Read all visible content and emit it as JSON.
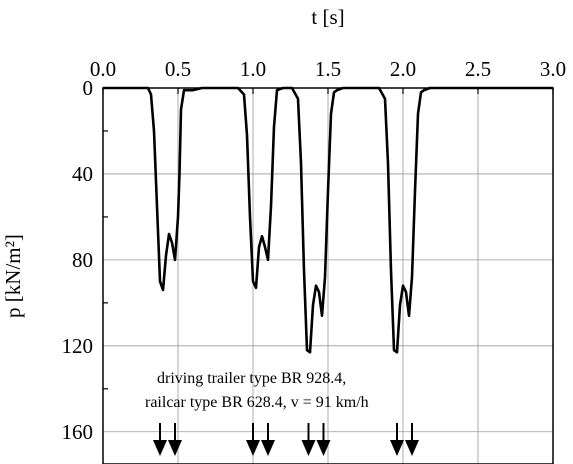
{
  "chart_data": {
    "type": "line",
    "xlabel": "t [s]",
    "ylabel": "p [kN/m²]",
    "xlim": [
      0.0,
      3.0
    ],
    "ylim": [
      0,
      175
    ],
    "y_inverted": true,
    "x_axis_position": "top",
    "grid": true,
    "x_ticks": [
      0.0,
      0.5,
      1.0,
      1.5,
      2.0,
      2.5,
      3.0
    ],
    "x_tick_labels": [
      "0.0",
      "0.5",
      "1.0",
      "1.5",
      "2.0",
      "2.5",
      "3.0"
    ],
    "y_ticks": [
      0,
      40,
      80,
      120,
      160
    ],
    "y_tick_labels": [
      "0",
      "40",
      "80",
      "120",
      "160"
    ],
    "annotation_lines": [
      "driving trailer type BR 928.4,",
      "railcar type BR 628.4, v = 91 km/h"
    ],
    "axle_arrows_t": [
      0.38,
      0.48,
      1.0,
      1.1,
      1.37,
      1.47,
      1.96,
      2.06
    ],
    "series": [
      {
        "x": [
          0.0,
          0.2,
          0.3,
          0.32,
          0.34,
          0.36,
          0.38,
          0.4,
          0.42,
          0.44,
          0.46,
          0.48,
          0.5,
          0.51,
          0.52,
          0.54,
          0.6,
          0.66,
          0.9,
          0.94,
          0.96,
          0.98,
          1.0,
          1.02,
          1.04,
          1.06,
          1.08,
          1.1,
          1.12,
          1.14,
          1.16,
          1.2,
          1.22,
          1.26,
          1.3,
          1.32,
          1.34,
          1.36,
          1.38,
          1.4,
          1.42,
          1.44,
          1.46,
          1.48,
          1.5,
          1.52,
          1.54,
          1.56,
          1.6,
          1.84,
          1.88,
          1.9,
          1.92,
          1.94,
          1.96,
          1.98,
          2.0,
          2.02,
          2.04,
          2.06,
          2.08,
          2.1,
          2.12,
          2.14,
          2.18,
          2.2,
          2.6,
          3.0
        ],
        "y": [
          0,
          0,
          0,
          3,
          20,
          55,
          90,
          94,
          78,
          68,
          72,
          80,
          60,
          40,
          10,
          1,
          1,
          0,
          0,
          3,
          22,
          60,
          90,
          93,
          74,
          69,
          74,
          80,
          55,
          18,
          1,
          0,
          0,
          0,
          5,
          35,
          85,
          122,
          123,
          101,
          92,
          95,
          106,
          88,
          48,
          12,
          2,
          1,
          0,
          0,
          5,
          35,
          85,
          122,
          123,
          101,
          92,
          95,
          106,
          88,
          48,
          12,
          2,
          1,
          0,
          0,
          0,
          0
        ]
      }
    ]
  }
}
